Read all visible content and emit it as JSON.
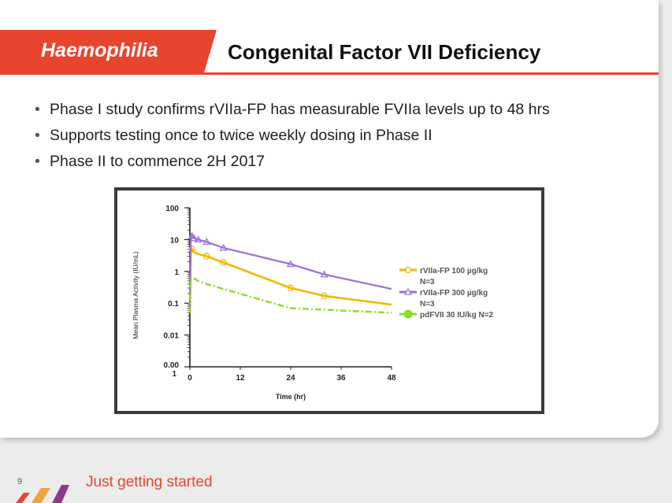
{
  "header": {
    "tag": "Haemophilia",
    "title": "Congenital Factor VII Deficiency"
  },
  "bullets": [
    "Phase I study confirms rVIIa-FP has measurable FVIIa levels up to 48 hrs",
    "Supports testing once to twice weekly dosing in Phase II",
    "Phase II to commence 2H 2017"
  ],
  "footer": {
    "page_number": "9",
    "tagline": "Just getting started"
  },
  "colors": {
    "brand": "#e8452e",
    "series_100": "#f0b800",
    "series_300": "#9b6fd6",
    "series_pdfvii": "#8cdc28"
  },
  "chart_data": {
    "type": "line",
    "xlabel": "Time (hr)",
    "ylabel": "Mean Plasma Activity (IU/mL)",
    "xlim": [
      0,
      48
    ],
    "ylim": [
      0.001,
      100
    ],
    "yscale": "log",
    "x_ticks": [
      "0",
      "12",
      "24",
      "36",
      "48"
    ],
    "y_ticks": [
      "100",
      "10",
      "1",
      "0.1",
      "0.01",
      "0.00\n1"
    ],
    "y_tick_lines": [
      "0.00",
      "1"
    ],
    "legend_position": "right",
    "legend": [
      {
        "line1": "rVIIa-FP 100 µg/kg",
        "line2": "N=3"
      },
      {
        "line1": "rVIIa-FP 300 µg/kg",
        "line2": "N=3"
      },
      {
        "line1": "pdFVII 30 IU/kg N=2",
        "line2": ""
      }
    ],
    "series": [
      {
        "name": "rVIIa-FP 100 µg/kg N=3",
        "color": "#f0b800",
        "marker": "circle",
        "x": [
          0,
          0.25,
          0.5,
          1,
          2,
          4,
          8,
          24,
          32,
          48
        ],
        "y": [
          0.05,
          5.5,
          5.0,
          4.0,
          3.5,
          3.0,
          1.9,
          0.3,
          0.17,
          0.09
        ],
        "markers_at": [
          0.5,
          4,
          8,
          24,
          32
        ]
      },
      {
        "name": "rVIIa-FP 300 µg/kg N=3",
        "color": "#9b6fd6",
        "marker": "triangle",
        "x": [
          0,
          0.25,
          0.5,
          1,
          2,
          4,
          8,
          24,
          32,
          48
        ],
        "y": [
          0.05,
          15,
          13,
          11,
          10,
          8.5,
          5.5,
          1.7,
          0.8,
          0.28
        ],
        "markers_at": [
          0.5,
          1,
          2,
          4,
          8,
          24,
          32
        ]
      },
      {
        "name": "pdFVII 30 IU/kg N=2",
        "color": "#8cdc28",
        "marker": "circle",
        "x": [
          0,
          0.25,
          0.5,
          1,
          2,
          4,
          8,
          24,
          48
        ],
        "y": [
          0.05,
          0.6,
          0.65,
          0.6,
          0.5,
          0.4,
          0.28,
          0.07,
          0.05
        ],
        "markers_at": []
      }
    ]
  }
}
